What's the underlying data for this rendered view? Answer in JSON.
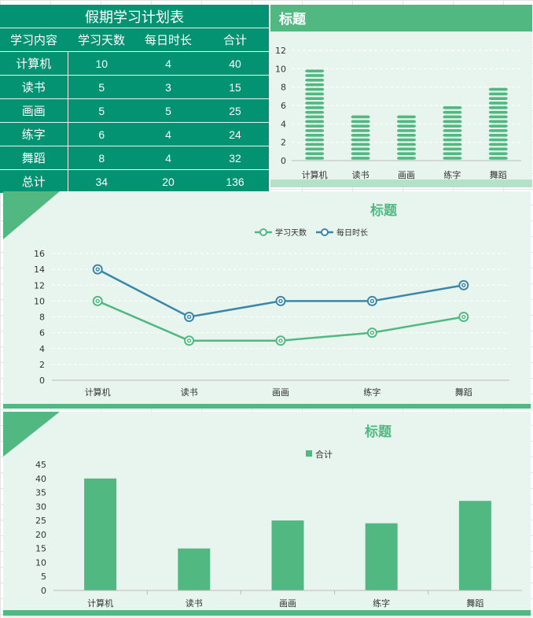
{
  "table": {
    "title": "假期学习计划表",
    "headers": [
      "学习内容",
      "学习天数",
      "每日时长",
      "合计"
    ],
    "rows": [
      [
        "计算机",
        "10",
        "4",
        "40"
      ],
      [
        "读书",
        "5",
        "3",
        "15"
      ],
      [
        "画画",
        "5",
        "5",
        "25"
      ],
      [
        "练字",
        "6",
        "4",
        "24"
      ],
      [
        "舞蹈",
        "8",
        "4",
        "32"
      ],
      [
        "总计",
        "34",
        "20",
        "136"
      ]
    ]
  },
  "colors": {
    "table_bg": "#039373",
    "panel_bg": "#e8f5ee",
    "green": "#52b882",
    "blue": "#3a87a8"
  },
  "chart_data": [
    {
      "type": "bar",
      "title": "标题",
      "categories": [
        "计算机",
        "读书",
        "画画",
        "练字",
        "舞蹈"
      ],
      "values": [
        10,
        5,
        5,
        6,
        8
      ],
      "ylim": [
        0,
        12
      ],
      "yticks": [
        0,
        2,
        4,
        6,
        8,
        10,
        12
      ]
    },
    {
      "type": "line",
      "title": "标题",
      "categories": [
        "计算机",
        "读书",
        "画画",
        "练字",
        "舞蹈"
      ],
      "series": [
        {
          "name": "学习天数",
          "values": [
            10,
            5,
            5,
            6,
            8
          ]
        },
        {
          "name": "每日时长",
          "values": [
            14,
            8,
            10,
            10,
            12
          ]
        }
      ],
      "ylim": [
        0,
        16
      ],
      "yticks": [
        0,
        2,
        4,
        6,
        8,
        10,
        12,
        14,
        16
      ],
      "legend": "top"
    },
    {
      "type": "bar",
      "title": "标题",
      "categories": [
        "计算机",
        "读书",
        "画画",
        "练字",
        "舞蹈"
      ],
      "series": [
        {
          "name": "合计",
          "values": [
            40,
            15,
            25,
            24,
            32
          ]
        }
      ],
      "ylim": [
        0,
        45
      ],
      "yticks": [
        0,
        5,
        10,
        15,
        20,
        25,
        30,
        35,
        40,
        45
      ],
      "legend": "top"
    }
  ]
}
